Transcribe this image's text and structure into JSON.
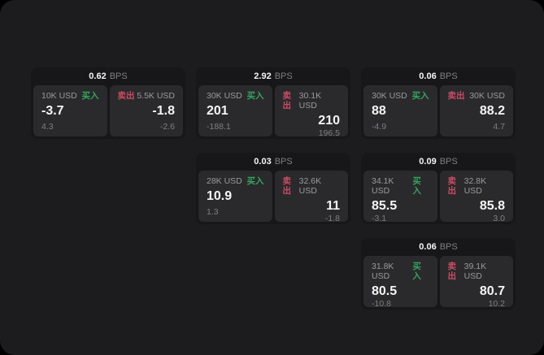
{
  "labels": {
    "bps_unit": "BPS",
    "buy": "买入",
    "sell": "卖出"
  },
  "colors": {
    "background": "#000000",
    "panel": "#1c1c1e",
    "card": "#171719",
    "tile": "#2a2a2c",
    "buy_green": "#33a55f",
    "sell_red": "#cd4a64",
    "value_white": "#f5f5f6",
    "label_gray": "#9a9a9f",
    "sub_gray": "#7f7f84"
  },
  "cards": [
    {
      "bps": "0.62",
      "buy": {
        "notional": "10K USD",
        "value": "-3.7",
        "sub": "4.3"
      },
      "sell": {
        "notional": "5.5K USD",
        "value": "-1.8",
        "sub": "-2.6"
      }
    },
    {
      "bps": "2.92",
      "buy": {
        "notional": "30K USD",
        "value": "201",
        "sub": "-188.1"
      },
      "sell": {
        "notional": "30.1K USD",
        "value": "210",
        "sub": "196.5"
      }
    },
    {
      "bps": "0.06",
      "buy": {
        "notional": "30K USD",
        "value": "88",
        "sub": "-4.9"
      },
      "sell": {
        "notional": "30K USD",
        "value": "88.2",
        "sub": "4.7"
      }
    },
    {
      "bps": "0.03",
      "buy": {
        "notional": "28K USD",
        "value": "10.9",
        "sub": "1.3"
      },
      "sell": {
        "notional": "32.6K USD",
        "value": "11",
        "sub": "-1.8"
      }
    },
    {
      "bps": "0.09",
      "buy": {
        "notional": "34.1K USD",
        "value": "85.5",
        "sub": "-3.1"
      },
      "sell": {
        "notional": "32.8K USD",
        "value": "85.8",
        "sub": "3.0"
      }
    },
    {
      "bps": "0.06",
      "buy": {
        "notional": "31.8K USD",
        "value": "80.5",
        "sub": "-10.8"
      },
      "sell": {
        "notional": "39.1K USD",
        "value": "80.7",
        "sub": "10.2"
      }
    }
  ]
}
